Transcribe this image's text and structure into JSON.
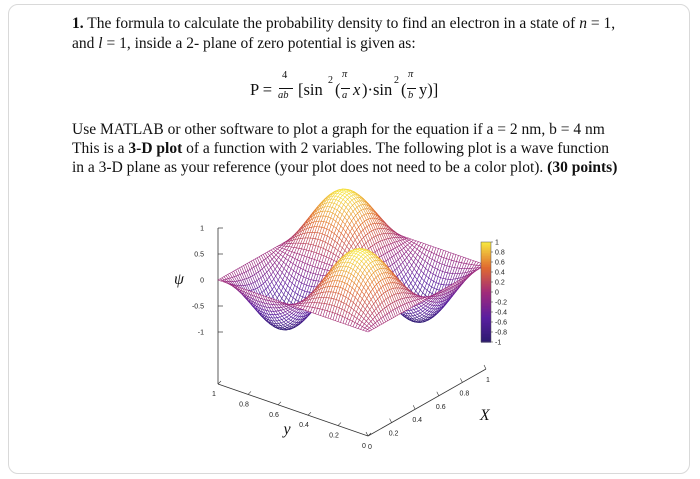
{
  "question": {
    "number": "1.",
    "line1_text": "The formula to calculate the probability density to find an electron in a state of ",
    "n_symbol": "n",
    "n_value": " = 1,",
    "line2_start": "and ",
    "l_symbol": "l",
    "line2_rest": " = 1, inside a 2- plane of zero potential is given as:"
  },
  "formula": {
    "lhs": "P =",
    "coef_num": "4",
    "coef_den": "ab",
    "open": "[sin",
    "sq1": "2",
    "paren1": "(",
    "pi1": "π",
    "den_a": "a",
    "var_x": "x",
    "mid": ")·sin",
    "sq2": "2",
    "paren2": "(",
    "pi2": "π",
    "den_b": "b",
    "close": "y)]"
  },
  "instructions": {
    "line1": "Use MATLAB or other software to plot a graph for the equation if a = 2 nm, b = 4 nm",
    "line2_start": "This is a ",
    "line2_bold": "3-D plot",
    "line2_end": " of a function with 2 variables. The following plot is a wave function",
    "line3": "in a 3-D plane as your reference (your plot does not need to be a color plot).",
    "points": "(30 points)"
  },
  "chart_data": {
    "type": "surface",
    "z_axis_label": "ψ",
    "x_axis_label": "X",
    "y_axis_label": "y",
    "z_ticks": [
      "1",
      "0.5",
      "0",
      "-0.5",
      "-1"
    ],
    "x_ticks": [
      "0",
      "0.2",
      "0.4",
      "0.6",
      "0.8",
      "1"
    ],
    "y_ticks": [
      "0",
      "0.2",
      "0.4",
      "0.6",
      "0.8",
      "1"
    ],
    "zlim": [
      -1,
      1
    ],
    "x_range": [
      0,
      1
    ],
    "y_range": [
      0,
      1
    ],
    "periods_x": 2,
    "periods_y": 2,
    "colorbar_ticks": [
      "1",
      "0.8",
      "0.6",
      "0.4",
      "0.2",
      "0",
      "-0.2",
      "-0.4",
      "-0.6",
      "-0.8",
      "-1"
    ],
    "colormap": [
      "#2a1a6e",
      "#5a1ea0",
      "#a02a7a",
      "#e06a30",
      "#f6e640"
    ]
  }
}
